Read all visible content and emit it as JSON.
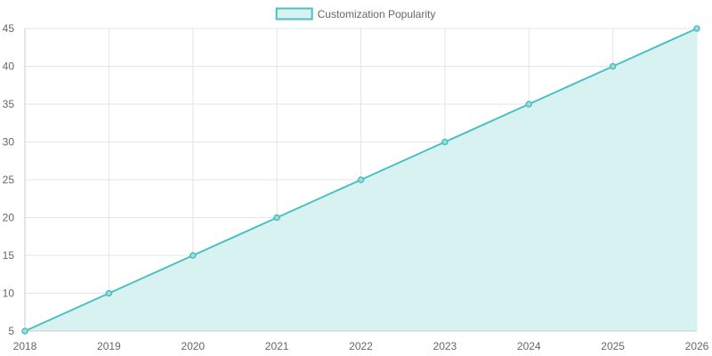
{
  "chart_data": {
    "type": "area",
    "title": "",
    "xlabel": "",
    "ylabel": "",
    "x": [
      "2018",
      "2019",
      "2020",
      "2021",
      "2022",
      "2023",
      "2024",
      "2025",
      "2026"
    ],
    "series": [
      {
        "name": "Customization Popularity",
        "values": [
          5,
          10,
          15,
          20,
          25,
          30,
          35,
          40,
          45
        ],
        "line_color": "#4bc0c0",
        "fill_color": "#d8f2f2"
      }
    ],
    "ylim": [
      5,
      45
    ],
    "y_ticks": [
      "5",
      "10",
      "15",
      "20",
      "25",
      "30",
      "35",
      "40",
      "45"
    ],
    "grid": true,
    "legend_position": "top-center",
    "grid_color": "#e5e5e5",
    "axis_color": "#cccccc"
  }
}
